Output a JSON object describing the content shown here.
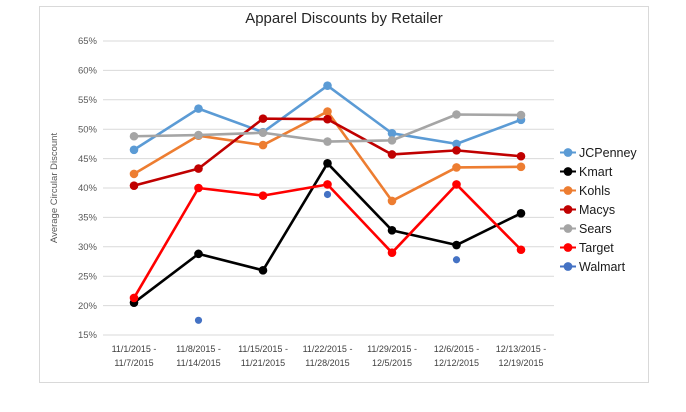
{
  "chart_data": {
    "type": "line",
    "title": "Apparel Discounts by Retailer",
    "ylabel": "Average Circular Discount",
    "xlabel": "",
    "ylim": [
      15,
      65
    ],
    "ytick_step": 5,
    "ytick_suffix": "%",
    "grid": true,
    "legend_position": "right",
    "categories": [
      "11/1/2015 - 11/7/2015",
      "11/8/2015 - 11/14/2015",
      "11/15/2015 - 11/21/2015",
      "11/22/2015 - 11/28/2015",
      "11/29/2015 - 12/5/2015",
      "12/6/2015 - 12/12/2015",
      "12/13/2015 - 12/19/2015"
    ],
    "series": [
      {
        "name": "JCPenney",
        "color": "#5B9BD5",
        "marker": "circle",
        "line": true,
        "values": [
          46.5,
          53.5,
          49.5,
          57.4,
          49.3,
          47.5,
          51.6
        ]
      },
      {
        "name": "Kmart",
        "color": "#000000",
        "marker": "circle",
        "line": true,
        "values": [
          20.5,
          28.8,
          26.0,
          44.2,
          32.8,
          30.3,
          35.7
        ]
      },
      {
        "name": "Kohls",
        "color": "#ED7D31",
        "marker": "circle",
        "line": true,
        "values": [
          42.4,
          48.9,
          47.3,
          53.0,
          37.8,
          43.5,
          43.6
        ]
      },
      {
        "name": "Macys",
        "color": "#C00000",
        "marker": "circle",
        "line": true,
        "values": [
          40.4,
          43.3,
          51.8,
          51.7,
          45.7,
          46.4,
          45.4
        ]
      },
      {
        "name": "Sears",
        "color": "#A5A5A5",
        "marker": "circle",
        "line": true,
        "values": [
          48.8,
          49.0,
          49.4,
          47.9,
          48.1,
          52.5,
          52.4
        ]
      },
      {
        "name": "Target",
        "color": "#FF0000",
        "marker": "circle",
        "line": true,
        "values": [
          21.3,
          40.0,
          38.7,
          40.6,
          29.0,
          40.6,
          29.5
        ]
      },
      {
        "name": "Walmart",
        "color": "#4472C4",
        "marker": "dot",
        "line": false,
        "values": [
          null,
          17.5,
          null,
          38.9,
          null,
          27.8,
          null
        ]
      }
    ],
    "colors": {
      "gridline": "#D9D9D9",
      "frame_border": "#D9D9D9",
      "title_text": "#262626",
      "ytick_text": "#595959",
      "xtick_text": "#404040",
      "axis_title_text": "#595959",
      "legend_text": "#1A1A1A",
      "background": "#FFFFFF"
    }
  }
}
